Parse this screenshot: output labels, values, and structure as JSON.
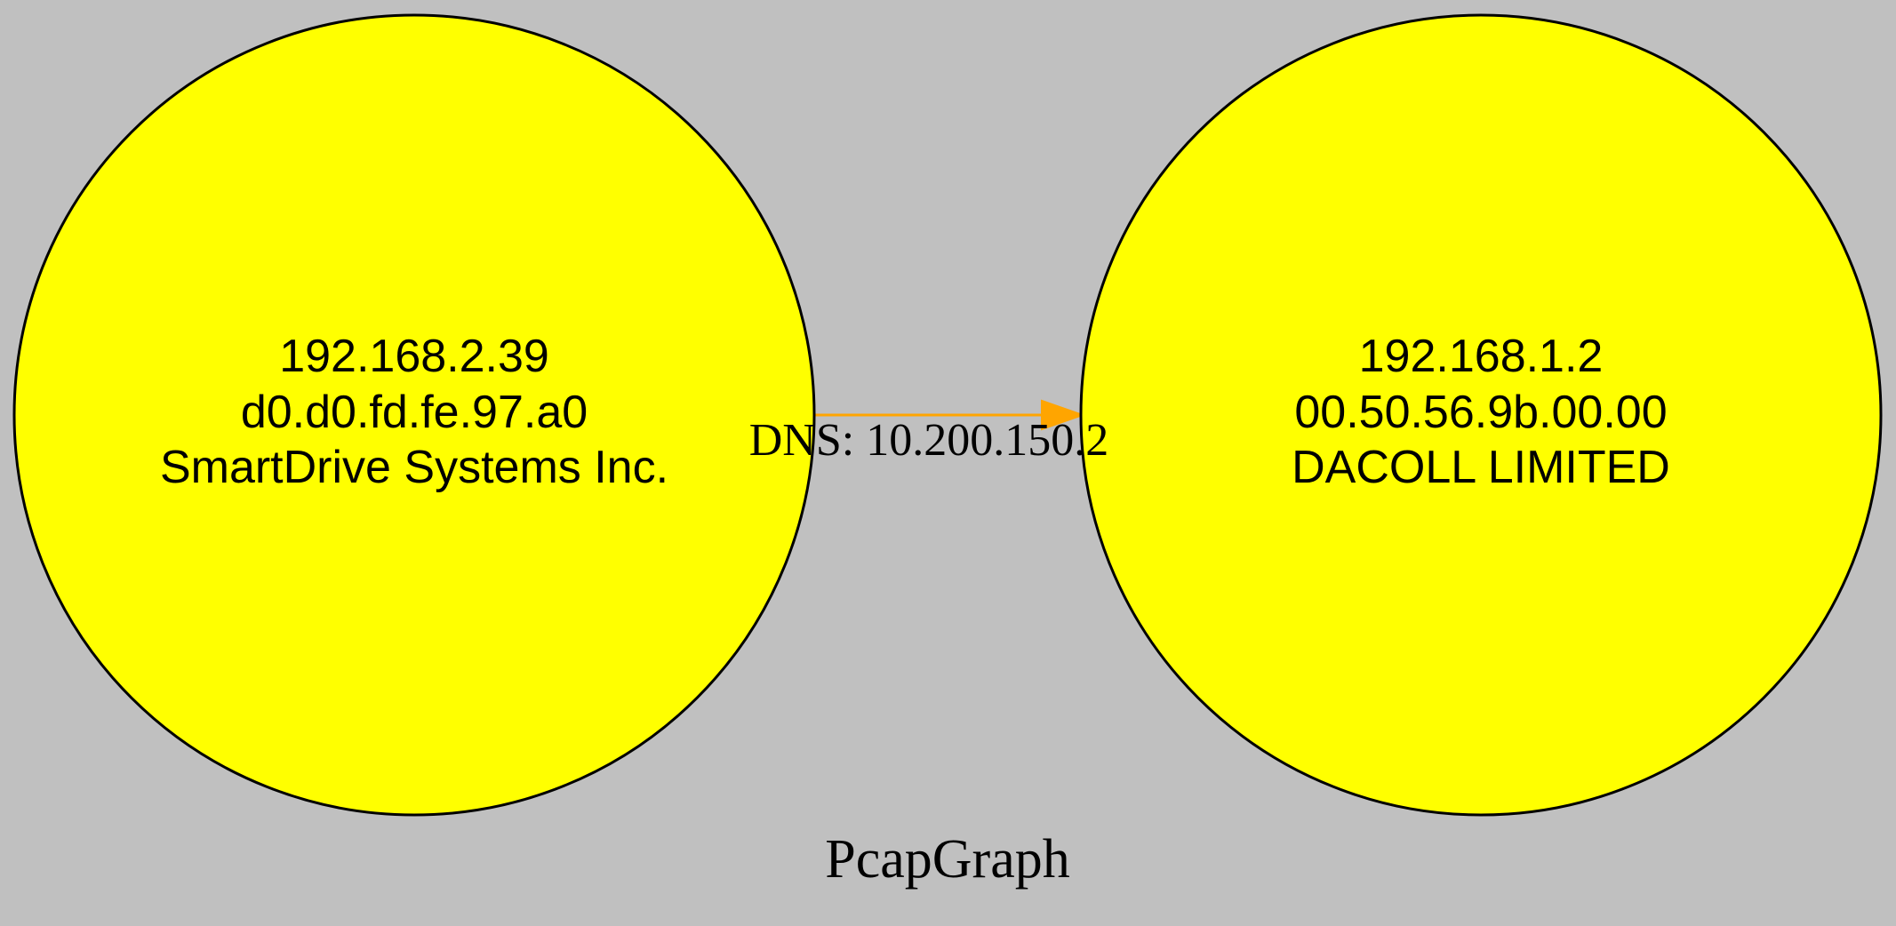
{
  "graph": {
    "title": "PcapGraph",
    "background_color": "#c0c0c0",
    "node_fill_color": "#ffff00",
    "node_stroke_color": "#000000",
    "edge_color": "#ffa500",
    "nodes": [
      {
        "id": "n1",
        "ip": "192.168.2.39",
        "mac": "d0.d0.fd.fe.97.a0",
        "vendor": "SmartDrive Systems Inc."
      },
      {
        "id": "n2",
        "ip": "192.168.1.2",
        "mac": "00.50.56.9b.00.00",
        "vendor": "DACOLL LIMITED"
      }
    ],
    "edges": [
      {
        "from": "n1",
        "to": "n2",
        "label": "DNS: 10.200.150.2"
      }
    ]
  }
}
